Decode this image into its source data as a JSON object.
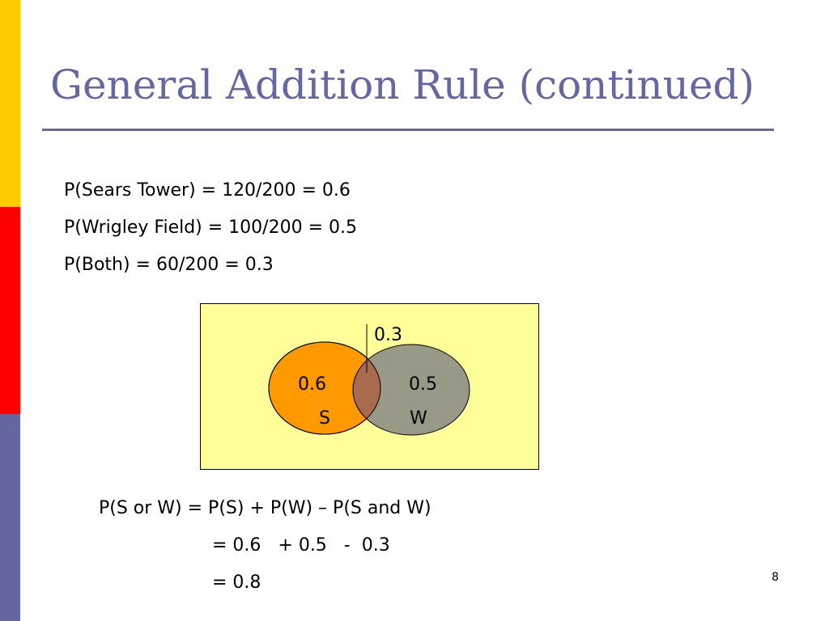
{
  "slide": {
    "title": "General Addition Rule (continued)",
    "page_number": "8",
    "accent_colors": {
      "sidebar": [
        "#FFCC00",
        "#FF0000",
        "#6666A0"
      ],
      "title": "#6666A0"
    }
  },
  "probabilities": [
    "P(Sears Tower) = 120/200 = 0.6",
    "P(Wrigley Field) = 100/200 = 0.5",
    "P(Both) = 60/200 = 0.3"
  ],
  "venn": {
    "background_color": "#FFFF99",
    "intersection_label": "0.3",
    "sets": [
      {
        "value_label": "0.6",
        "name_label": "S",
        "color": "#FF9900"
      },
      {
        "value_label": "0.5",
        "name_label": "W",
        "color": "#999988"
      }
    ],
    "overlap_color": "#A86B4E"
  },
  "formula": [
    "P(S or W) = P(S) + P(W) – P(S and W)",
    "= 0.6   + 0.5   -  0.3",
    "= 0.8"
  ]
}
